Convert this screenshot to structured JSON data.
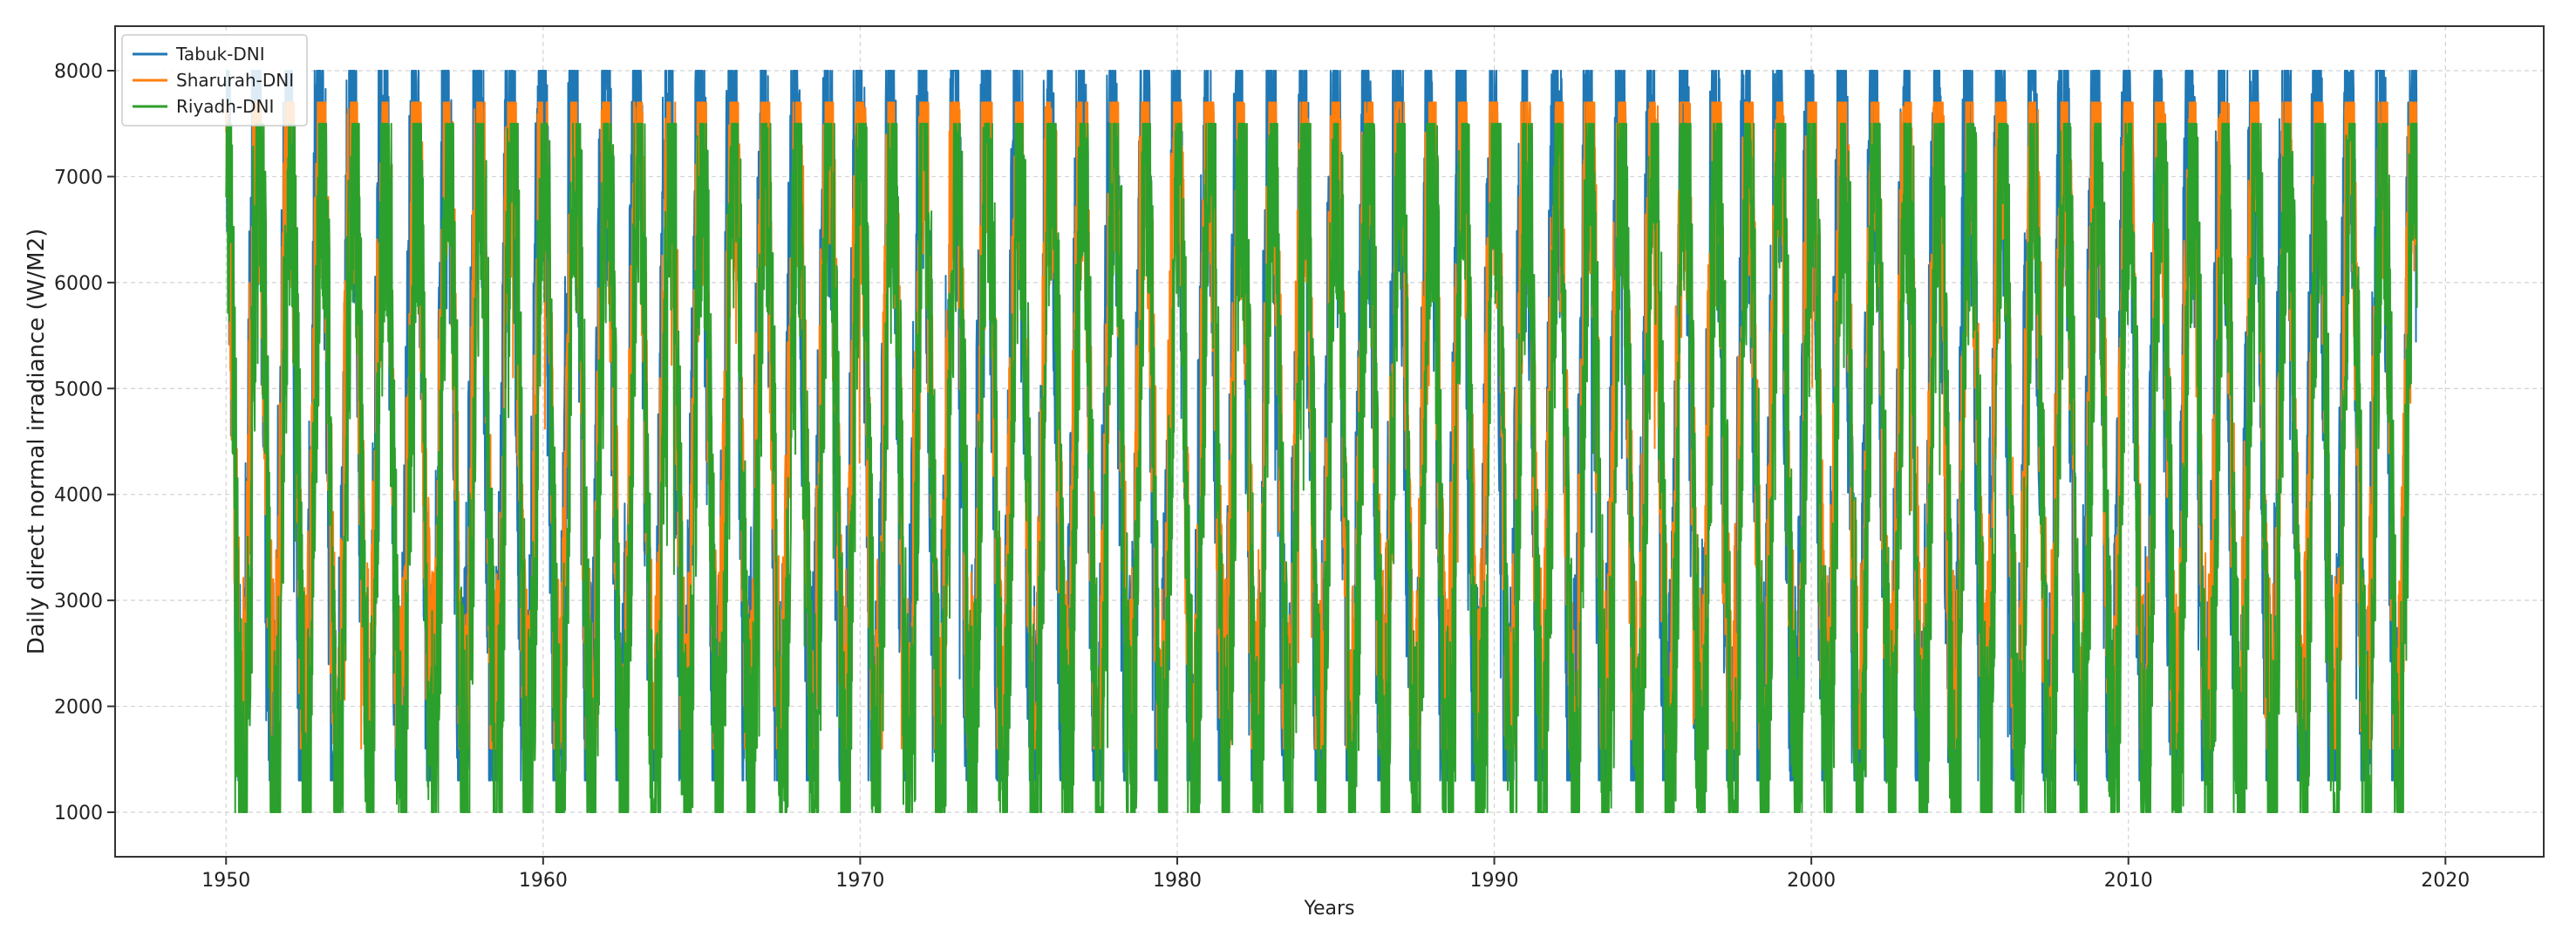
{
  "chart_data": {
    "type": "line",
    "title": "",
    "xlabel": "Years",
    "ylabel": "Daily direct normal irradiance (W/M2)",
    "xlim": [
      1946.5,
      2023.1
    ],
    "ylim": [
      580,
      8420
    ],
    "x_ticks": [
      1950,
      1960,
      1970,
      1980,
      1990,
      2000,
      2010,
      2020
    ],
    "y_ticks": [
      1000,
      2000,
      3000,
      4000,
      5000,
      6000,
      7000,
      8000
    ],
    "grid": true,
    "legend_position": "upper-left",
    "x_start": 1950.0,
    "x_end": 2019.1,
    "series": [
      {
        "name": "Tabuk-DNI",
        "color": "#1f77b4",
        "seasonal_min": 1300,
        "seasonal_max": 8000
      },
      {
        "name": "Sharurah-DNI",
        "color": "#ff7f0e",
        "seasonal_min": 1600,
        "seasonal_max": 7700
      },
      {
        "name": "Riyadh-DNI",
        "color": "#2ca02c",
        "seasonal_min": 1000,
        "seasonal_max": 7500
      }
    ]
  }
}
